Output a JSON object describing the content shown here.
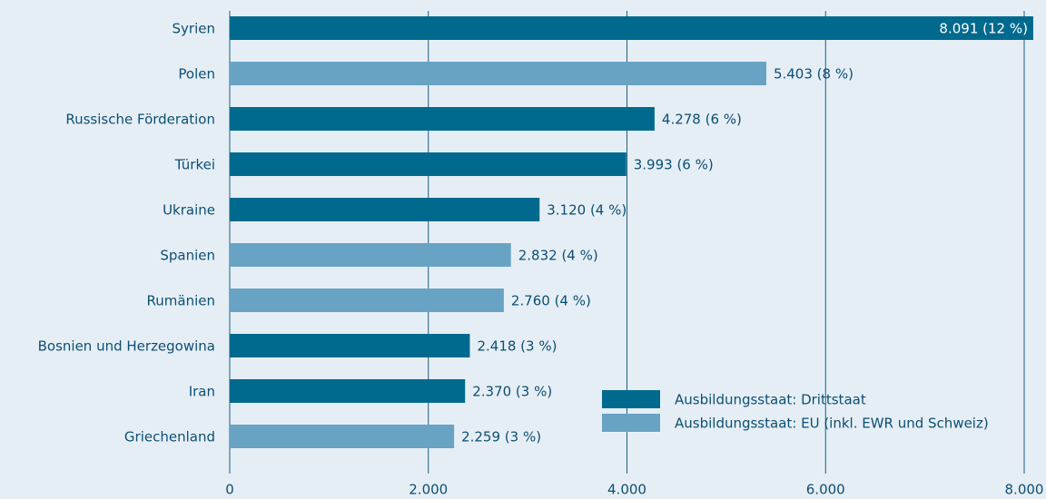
{
  "chart_data": {
    "type": "bar",
    "orientation": "horizontal",
    "categories": [
      "Syrien",
      "Polen",
      "Russische Förderation",
      "Türkei",
      "Ukraine",
      "Spanien",
      "Rumänien",
      "Bosnien und Herzegowina",
      "Iran",
      "Griechenland"
    ],
    "series": [
      {
        "name": "Ausbildungsstaat: Drittstaat",
        "color": "#006a8e",
        "values": [
          8091,
          null,
          4278,
          3993,
          3120,
          null,
          null,
          2418,
          2370,
          null
        ],
        "value_labels": [
          "8.091 (12 %)",
          null,
          "4.278 (6 %)",
          "3.993 (6 %)",
          "3.120 (4 %)",
          null,
          null,
          "2.418 (3 %)",
          "2.370 (3 %)",
          null
        ]
      },
      {
        "name": "Ausbildungsstaat: EU (inkl. EWR und Schweiz)",
        "color": "#68a3c4",
        "values": [
          null,
          5403,
          null,
          null,
          null,
          2832,
          2760,
          null,
          null,
          2259
        ],
        "value_labels": [
          null,
          "5.403 (8 %)",
          null,
          null,
          null,
          "2.832 (4 %)",
          "2.760 (4 %)",
          null,
          null,
          "2.259 (3 %)"
        ]
      }
    ],
    "xlim": [
      0,
      8000
    ],
    "xticks": [
      0,
      {
        "value": 2000,
        "label": "2.000"
      },
      {
        "value": 4000,
        "label": "4.000"
      },
      {
        "value": 6000,
        "label": "6.000"
      },
      {
        "value": 8000,
        "label": "8.000"
      }
    ],
    "grid": true,
    "legend": "lower right"
  }
}
